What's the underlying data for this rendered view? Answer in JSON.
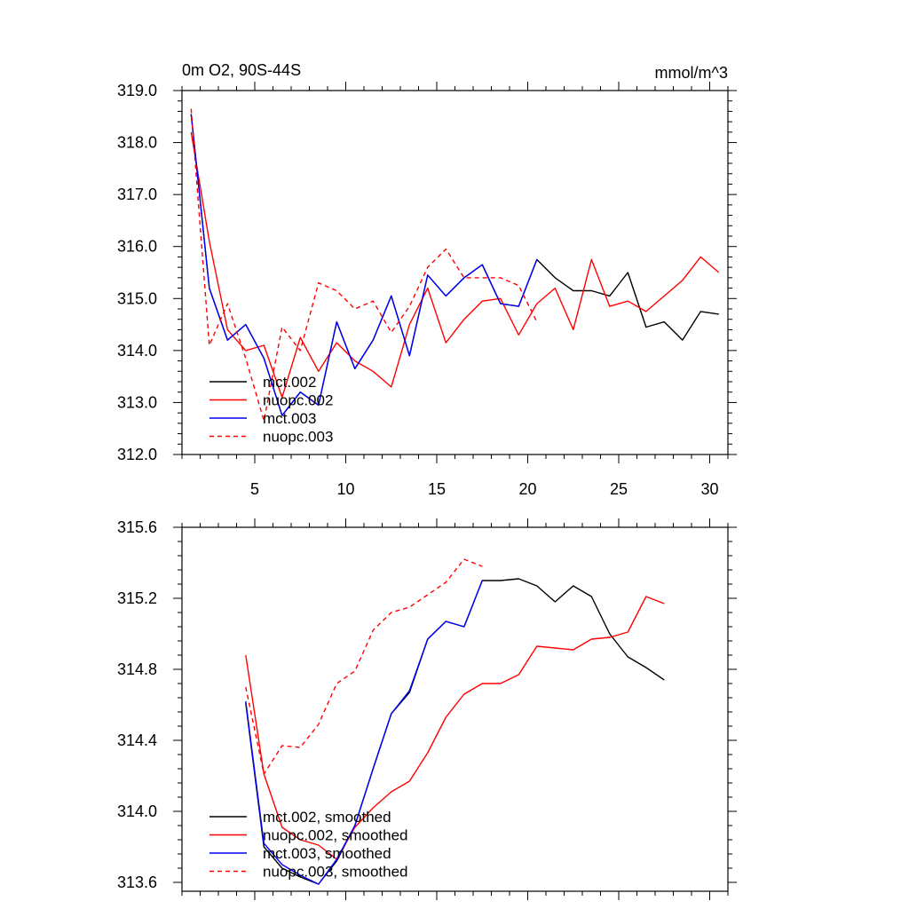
{
  "chart_data": [
    {
      "type": "line",
      "title_left": "0m O2, 90S-44S",
      "title_right": "mmol/m^3",
      "xlim": [
        1,
        31
      ],
      "ylim": [
        312.0,
        319.0
      ],
      "x_ticks": [
        5,
        10,
        15,
        20,
        25,
        30
      ],
      "x_tick_labels": [
        "5",
        "10",
        "15",
        "20",
        "25",
        "30"
      ],
      "y_ticks": [
        312.0,
        313.0,
        314.0,
        315.0,
        316.0,
        317.0,
        318.0,
        319.0
      ],
      "y_tick_labels": [
        "312.0",
        "313.0",
        "314.0",
        "315.0",
        "316.0",
        "317.0",
        "318.0",
        "319.0"
      ],
      "legend_position": "bottom-left",
      "series": [
        {
          "name": "mct.002",
          "color": "#000000",
          "dash": "solid",
          "x": [
            1.5,
            2.5,
            3.5,
            4.5,
            5.5,
            6.5,
            7.5,
            8.5,
            9.5,
            10.5,
            11.5,
            12.5,
            13.5,
            14.5,
            15.5,
            16.5,
            17.5,
            18.5,
            19.5,
            20.5,
            21.5,
            22.5,
            23.5,
            24.5,
            25.5,
            26.5,
            27.5,
            28.5,
            29.5,
            30.5
          ],
          "y": [
            318.55,
            315.2,
            314.2,
            314.5,
            313.85,
            312.75,
            313.2,
            312.95,
            314.55,
            313.65,
            314.2,
            315.05,
            313.9,
            315.45,
            315.05,
            315.4,
            315.65,
            314.9,
            314.85,
            315.75,
            315.4,
            315.15,
            315.15,
            315.05,
            315.5,
            314.45,
            314.55,
            314.2,
            314.75,
            314.7
          ]
        },
        {
          "name": "nuopc.002",
          "color": "#ff0000",
          "dash": "solid",
          "x": [
            1.5,
            2.5,
            3.5,
            4.5,
            5.5,
            6.5,
            7.5,
            8.5,
            9.5,
            10.5,
            11.5,
            12.5,
            13.5,
            14.5,
            15.5,
            16.5,
            17.5,
            18.5,
            19.5,
            20.5,
            21.5,
            22.5,
            23.5,
            24.5,
            25.5,
            26.5,
            27.5,
            28.5,
            29.5,
            30.5
          ],
          "y": [
            318.2,
            316.1,
            314.4,
            314.0,
            314.1,
            313.1,
            314.25,
            313.6,
            314.15,
            313.8,
            313.6,
            313.3,
            314.5,
            315.2,
            314.15,
            314.6,
            314.95,
            315.0,
            314.3,
            314.9,
            315.2,
            314.4,
            315.75,
            314.85,
            314.95,
            314.75,
            315.05,
            315.35,
            315.8,
            315.5
          ]
        },
        {
          "name": "mct.003",
          "color": "#0000ff",
          "dash": "solid",
          "x": [
            1.5,
            2.5,
            3.5,
            4.5,
            5.5,
            6.5,
            7.5,
            8.5,
            9.5,
            10.5,
            11.5,
            12.5,
            13.5,
            14.5,
            15.5,
            16.5,
            17.5,
            18.5,
            19.5,
            20.5
          ],
          "y": [
            318.55,
            315.2,
            314.2,
            314.5,
            313.85,
            312.75,
            313.2,
            312.95,
            314.55,
            313.65,
            314.2,
            315.05,
            313.9,
            315.45,
            315.05,
            315.4,
            315.65,
            314.9,
            314.85,
            315.75
          ]
        },
        {
          "name": "nuopc.003",
          "color": "#ff0000",
          "dash": "dashed",
          "x": [
            1.5,
            2.5,
            3.5,
            4.5,
            5.5,
            6.5,
            7.5,
            8.5,
            9.5,
            10.5,
            11.5,
            12.5,
            13.5,
            14.5,
            15.5,
            16.5,
            17.5,
            18.5,
            19.5,
            20.5
          ],
          "y": [
            318.65,
            314.1,
            314.9,
            313.85,
            312.65,
            314.45,
            314.0,
            315.3,
            315.15,
            314.8,
            314.95,
            314.35,
            314.85,
            315.6,
            315.95,
            315.4,
            315.4,
            315.4,
            315.25,
            314.55
          ]
        }
      ]
    },
    {
      "type": "line",
      "xlim": [
        1,
        31
      ],
      "ylim": [
        313.55,
        315.6
      ],
      "x_ticks": [
        5,
        10,
        15,
        20,
        25,
        30
      ],
      "y_ticks": [
        313.6,
        314.0,
        314.4,
        314.8,
        315.2,
        315.6
      ],
      "y_tick_labels": [
        "313.6",
        "314.0",
        "314.4",
        "314.8",
        "315.2",
        "315.6"
      ],
      "legend_position": "bottom-left",
      "series": [
        {
          "name": "mct.002, smoothed",
          "color": "#000000",
          "dash": "solid",
          "x": [
            4.5,
            5.5,
            6.5,
            7.5,
            8.5,
            9.5,
            10.5,
            11.5,
            12.5,
            13.5,
            14.5,
            15.5,
            16.5,
            17.5,
            18.5,
            19.5,
            20.5,
            21.5,
            22.5,
            23.5,
            24.5,
            25.5,
            26.5,
            27.5
          ],
          "y": [
            314.61,
            313.8,
            313.68,
            313.63,
            313.59,
            313.72,
            313.92,
            314.24,
            314.55,
            314.67,
            314.97,
            315.07,
            315.04,
            315.3,
            315.3,
            315.31,
            315.27,
            315.18,
            315.27,
            315.21,
            315.0,
            314.87,
            314.81,
            314.74
          ]
        },
        {
          "name": "nuopc.002, smoothed",
          "color": "#ff0000",
          "dash": "solid",
          "x": [
            4.5,
            5.5,
            6.5,
            7.5,
            8.5,
            9.5,
            10.5,
            11.5,
            12.5,
            13.5,
            14.5,
            15.5,
            16.5,
            17.5,
            18.5,
            19.5,
            20.5,
            21.5,
            22.5,
            23.5,
            24.5,
            25.5,
            26.5,
            27.5
          ],
          "y": [
            314.88,
            314.21,
            313.91,
            313.84,
            313.81,
            313.73,
            313.91,
            314.02,
            314.11,
            314.17,
            314.33,
            314.53,
            314.66,
            314.72,
            314.72,
            314.77,
            314.93,
            314.92,
            314.91,
            314.97,
            314.98,
            315.01,
            315.21,
            315.17
          ]
        },
        {
          "name": "mct.003, smoothed",
          "color": "#0000ff",
          "dash": "solid",
          "x": [
            4.5,
            5.5,
            6.5,
            7.5,
            8.5,
            9.5,
            10.5,
            11.5,
            12.5,
            13.5,
            14.5,
            15.5,
            16.5,
            17.5
          ],
          "y": [
            314.62,
            313.82,
            313.7,
            313.64,
            313.59,
            313.73,
            313.92,
            314.24,
            314.55,
            314.68,
            314.97,
            315.07,
            315.04,
            315.3
          ]
        },
        {
          "name": "nuopc.003, smoothed",
          "color": "#ff0000",
          "dash": "dashed",
          "x": [
            4.5,
            5.5,
            6.5,
            7.5,
            8.5,
            9.5,
            10.5,
            11.5,
            12.5,
            13.5,
            14.5,
            15.5,
            16.5,
            17.5
          ],
          "y": [
            314.7,
            314.21,
            314.37,
            314.36,
            314.49,
            314.72,
            314.79,
            315.02,
            315.12,
            315.15,
            315.22,
            315.29,
            315.42,
            315.38
          ]
        }
      ]
    }
  ]
}
